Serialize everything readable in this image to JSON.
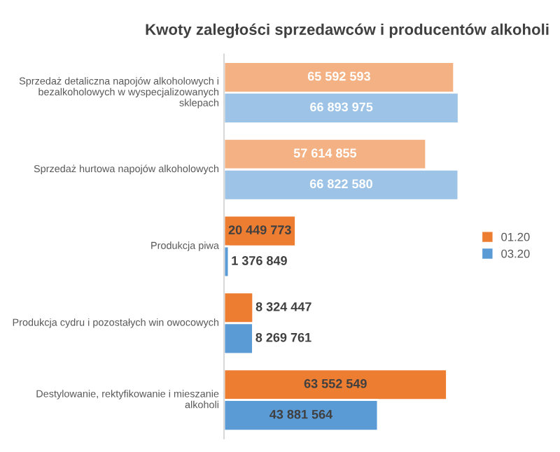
{
  "chart_data": {
    "type": "bar",
    "orientation": "horizontal",
    "title": "Kwoty zaległości sprzedawców i producentów alkoholi",
    "categories": [
      "Sprzedaż detaliczna napojów alkoholowych i bezalkoholowych w wyspecjalizowanych sklepach",
      "Sprzedaż hurtowa napojów alkoholowych",
      "Produkcja piwa",
      "Produkcja cydru i pozostałych win owocowych",
      "Destylowanie, rektyfikowanie i mieszanie alkoholi"
    ],
    "series": [
      {
        "name": "01.20",
        "color": "#ed7d31",
        "colors": [
          "#f4b183",
          "#f4b183",
          "#ed7d31",
          "#ed7d31",
          "#ed7d31"
        ],
        "values": [
          65592593,
          57614855,
          20449773,
          8324447,
          63552549
        ],
        "value_labels": [
          "65 592 593",
          "57 614 855",
          "20 449 773",
          "8 324 447",
          "63 552 549"
        ]
      },
      {
        "name": "03.20",
        "color": "#5b9bd5",
        "colors": [
          "#9dc3e6",
          "#9dc3e6",
          "#5b9bd5",
          "#5b9bd5",
          "#5b9bd5"
        ],
        "values": [
          66893975,
          66822580,
          1376849,
          8269761,
          43881564
        ],
        "value_labels": [
          "66 893 975",
          "66 822 580",
          "1 376 849",
          "8 269 761",
          "43 881 564"
        ]
      }
    ],
    "tick_labels": "y",
    "grid": false,
    "legend": "right"
  }
}
